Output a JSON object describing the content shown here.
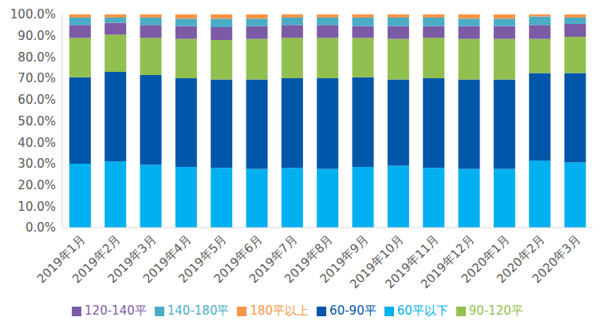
{
  "chart_data": {
    "type": "bar",
    "stacked": true,
    "grid": false,
    "legend": "bottom",
    "categories": [
      "2019年1月",
      "2019年2月",
      "2019年3月",
      "2019年4月",
      "2019年5月",
      "2019年6月",
      "2019年7月",
      "2019年8月",
      "2019年9月",
      "2019年10月",
      "2019年11月",
      "2019年12月",
      "2020年1月",
      "2020年2月",
      "2020年3月"
    ],
    "ylim": [
      0,
      100
    ],
    "yticks": [
      {
        "value": 0,
        "label": "0.0%"
      },
      {
        "value": 10,
        "label": "10.0%"
      },
      {
        "value": 20,
        "label": "20.0%"
      },
      {
        "value": 30,
        "label": "30.0%"
      },
      {
        "value": 40,
        "label": "40.0%"
      },
      {
        "value": 50,
        "label": "50.0%"
      },
      {
        "value": 60,
        "label": "60.0%"
      },
      {
        "value": 70,
        "label": "70.0%"
      },
      {
        "value": 80,
        "label": "80.0%"
      },
      {
        "value": 90,
        "label": "90.0%"
      },
      {
        "value": 100,
        "label": "100.0%"
      }
    ],
    "series": [
      {
        "name": "60平以下",
        "color": "#00B0F0",
        "values": [
          30,
          31,
          29.5,
          28.5,
          28,
          27.5,
          28,
          27.5,
          28.5,
          29,
          28,
          27.5,
          27.5,
          31.5,
          30.5
        ]
      },
      {
        "name": "60-90平",
        "color": "#0056A8",
        "values": [
          40.5,
          42,
          42,
          41.5,
          41.5,
          42,
          42,
          42.5,
          42,
          40.5,
          42,
          42,
          42,
          41,
          42
        ]
      },
      {
        "name": "90-120平",
        "color": "#92C050",
        "values": [
          18.5,
          17.5,
          17.5,
          18.5,
          18.5,
          19,
          19,
          19,
          18.5,
          19,
          19,
          19,
          19,
          16,
          17
        ]
      },
      {
        "name": "120-140平",
        "color": "#7C5BA6",
        "values": [
          6,
          5.5,
          6,
          6,
          6,
          6,
          6,
          6,
          5.5,
          6,
          5.5,
          6,
          6,
          6.5,
          6
        ]
      },
      {
        "name": "140-180平",
        "color": "#4BACC6",
        "values": [
          3.5,
          2.5,
          3.5,
          3.5,
          4,
          3.5,
          3.5,
          3.5,
          4,
          4,
          4,
          3.5,
          3.5,
          4,
          3
        ]
      },
      {
        "name": "180平以上",
        "color": "#F79646",
        "values": [
          1.5,
          1.5,
          1.5,
          2,
          2,
          2,
          1.5,
          1.5,
          1.5,
          1.5,
          1.5,
          2,
          2,
          1,
          1.5
        ]
      }
    ]
  }
}
